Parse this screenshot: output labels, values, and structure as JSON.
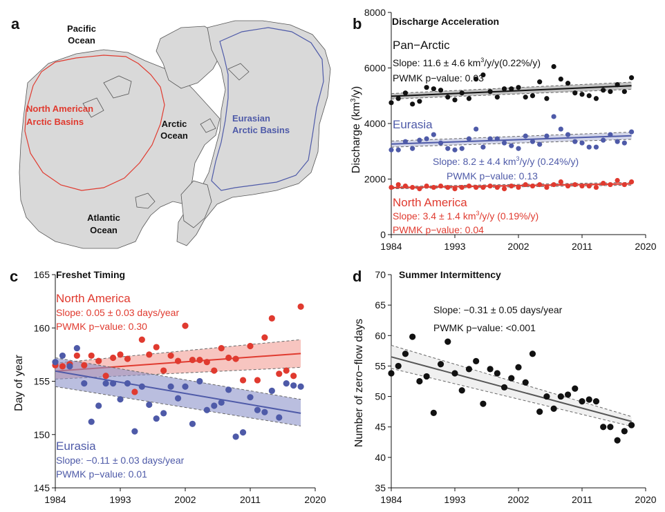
{
  "panels": {
    "a": {
      "letter": "a",
      "labels": {
        "pacific": [
          "Pacific",
          "Ocean"
        ],
        "north_american": [
          "North American",
          "Arctic Basins"
        ],
        "arctic": [
          "Arctic",
          "Ocean"
        ],
        "eurasian": [
          "Eurasian",
          "Arctic Basins"
        ],
        "atlantic": [
          "Atlantic",
          "Ocean"
        ]
      },
      "colors": {
        "north_american": "#e03a2f",
        "eurasian": "#4e5aa8",
        "land": "#d9d9d9"
      }
    },
    "b": {
      "letter": "b",
      "title": "Discharge Acceleration"
    },
    "c": {
      "letter": "c",
      "title": "Freshet Timing"
    },
    "d": {
      "letter": "d",
      "title": "Summer Intermittency"
    }
  },
  "chart_data": [
    {
      "id": "b",
      "type": "scatter",
      "title": "Discharge Acceleration",
      "ylabel_main": "Discharge (km",
      "ylabel_sup": "3",
      "ylabel_tail": "/y)",
      "xlim": [
        1984,
        2020
      ],
      "ylim": [
        0,
        8000
      ],
      "xticks": [
        "1984",
        "1993",
        "2002",
        "2011",
        "2020"
      ],
      "yticks": [
        "0",
        "2000",
        "4000",
        "6000",
        "8000"
      ],
      "series": [
        {
          "name": "Pan−Arctic",
          "color": "#111111",
          "x": [
            1984,
            1985,
            1986,
            1987,
            1988,
            1989,
            1990,
            1991,
            1992,
            1993,
            1994,
            1995,
            1996,
            1997,
            1998,
            1999,
            2000,
            2001,
            2002,
            2003,
            2004,
            2005,
            2006,
            2007,
            2008,
            2009,
            2010,
            2011,
            2012,
            2013,
            2014,
            2015,
            2016,
            2017,
            2018
          ],
          "y": [
            4750,
            4900,
            5100,
            4700,
            4800,
            5300,
            5250,
            5200,
            4950,
            4850,
            5100,
            4900,
            5600,
            5750,
            5150,
            4950,
            5250,
            5250,
            5300,
            4950,
            5000,
            5500,
            4900,
            6050,
            5600,
            5450,
            5100,
            5050,
            5000,
            4900,
            5200,
            5150,
            5400,
            5150,
            5650
          ],
          "trend": [
            4980,
            5360
          ],
          "band": [
            [
              4880,
              5080
            ],
            [
              5230,
              5490
            ]
          ],
          "text": {
            "slope_prefix": "Slope: 11.6 ± 4.6 km",
            "slope_sup": "3",
            "slope_suffix": "/y/y(0.22%/y)",
            "pvalue": "PWMK p−value: 0.03"
          }
        },
        {
          "name": "Eurasia",
          "color": "#4e5aa8",
          "x": [
            1984,
            1985,
            1986,
            1987,
            1988,
            1989,
            1990,
            1991,
            1992,
            1993,
            1994,
            1995,
            1996,
            1997,
            1998,
            1999,
            2000,
            2001,
            2002,
            2003,
            2004,
            2005,
            2006,
            2007,
            2008,
            2009,
            2010,
            2011,
            2012,
            2013,
            2014,
            2015,
            2016,
            2017,
            2018
          ],
          "y": [
            3050,
            3050,
            3350,
            3100,
            3400,
            3450,
            3600,
            3300,
            3100,
            3050,
            3100,
            3450,
            3800,
            3150,
            3450,
            3450,
            3300,
            3200,
            3100,
            3550,
            3350,
            3250,
            3550,
            4250,
            3800,
            3600,
            3350,
            3300,
            3150,
            3150,
            3400,
            3600,
            3350,
            3300,
            3700
          ],
          "trend": [
            3260,
            3560
          ],
          "band": [
            [
              3150,
              3370
            ],
            [
              3430,
              3690
            ]
          ],
          "text": {
            "slope_prefix": "Slope: 8.2 ± 4.4 km",
            "slope_sup": "3",
            "slope_suffix": "/y/y (0.24%/y)",
            "pvalue": "PWMK p−value: 0.13"
          }
        },
        {
          "name": "North America",
          "color": "#e03a2f",
          "x": [
            1984,
            1985,
            1986,
            1987,
            1988,
            1989,
            1990,
            1991,
            1992,
            1993,
            1994,
            1995,
            1996,
            1997,
            1998,
            1999,
            2000,
            2001,
            2002,
            2003,
            2004,
            2005,
            2006,
            2007,
            2008,
            2009,
            2010,
            2011,
            2012,
            2013,
            2014,
            2015,
            2016,
            2017,
            2018
          ],
          "y": [
            1700,
            1800,
            1750,
            1700,
            1650,
            1750,
            1700,
            1750,
            1700,
            1650,
            1700,
            1750,
            1700,
            1700,
            1750,
            1700,
            1650,
            1750,
            1700,
            1800,
            1750,
            1800,
            1700,
            1800,
            1900,
            1750,
            1800,
            1750,
            1750,
            1700,
            1850,
            1800,
            1950,
            1800,
            1900
          ],
          "trend": [
            1690,
            1830
          ],
          "band": [
            [
              1650,
              1730
            ],
            [
              1780,
              1880
            ]
          ],
          "text": {
            "slope_prefix": "Slope: 3.4 ± 1.4 km",
            "slope_sup": "3",
            "slope_suffix": "/y/y  (0.19%/y)",
            "pvalue": "PWMK p−value: 0.04"
          }
        }
      ]
    },
    {
      "id": "c",
      "type": "scatter",
      "title": "Freshet Timing",
      "ylabel": "Day of year",
      "xlim": [
        1984,
        2020
      ],
      "ylim": [
        145,
        165
      ],
      "xticks": [
        "1984",
        "1993",
        "2002",
        "2011",
        "2020"
      ],
      "yticks": [
        "145",
        "150",
        "155",
        "160",
        "165"
      ],
      "series": [
        {
          "name": "North America",
          "color": "#e03a2f",
          "band_color": "#f29f96",
          "x": [
            1984,
            1985,
            1986,
            1987,
            1988,
            1989,
            1990,
            1991,
            1992,
            1993,
            1994,
            1995,
            1996,
            1997,
            1998,
            1999,
            2000,
            2001,
            2002,
            2003,
            2004,
            2005,
            2006,
            2007,
            2008,
            2009,
            2010,
            2011,
            2012,
            2013,
            2014,
            2015,
            2016,
            2017,
            2018
          ],
          "y": [
            156.5,
            156.4,
            156.6,
            157.4,
            156.5,
            157.4,
            156.9,
            155.5,
            157.2,
            157.5,
            157.1,
            154.0,
            158.9,
            157.5,
            158.2,
            156.0,
            157.4,
            156.9,
            160.2,
            157.0,
            157.0,
            156.8,
            156.0,
            158.1,
            157.2,
            157.1,
            155.1,
            158.3,
            155.1,
            159.1,
            160.9,
            155.7,
            156.0,
            155.5,
            162.0
          ],
          "trend": [
            155.95,
            157.6
          ],
          "band": [
            [
              155.2,
              156.7
            ],
            [
              156.3,
              158.9
            ]
          ],
          "text": {
            "slope": "Slope: 0.05 ± 0.03 days/year",
            "pvalue": "PWMK p−value: 0.30"
          }
        },
        {
          "name": "Eurasia",
          "color": "#4e5aa8",
          "band_color": "#8c93c9",
          "x": [
            1984,
            1985,
            1986,
            1987,
            1988,
            1989,
            1990,
            1991,
            1992,
            1993,
            1994,
            1995,
            1996,
            1997,
            1998,
            1999,
            2000,
            2001,
            2002,
            2003,
            2004,
            2005,
            2006,
            2007,
            2008,
            2009,
            2010,
            2011,
            2012,
            2013,
            2014,
            2015,
            2016,
            2017,
            2018
          ],
          "y": [
            156.8,
            157.4,
            156.4,
            158.1,
            154.8,
            151.2,
            152.7,
            154.8,
            154.8,
            153.3,
            154.8,
            150.3,
            154.5,
            152.8,
            151.5,
            152.0,
            154.5,
            153.4,
            154.5,
            151.0,
            155.0,
            152.3,
            152.7,
            153.0,
            154.2,
            149.8,
            150.2,
            153.5,
            152.3,
            152.1,
            154.1,
            151.6,
            154.8,
            154.6,
            154.5
          ],
          "trend": [
            155.95,
            152.0
          ],
          "band": [
            [
              154.5,
              157.2
            ],
            [
              150.8,
              153.3
            ]
          ],
          "text": {
            "slope": "Slope: −0.11 ± 0.03 days/year",
            "pvalue": "PWMK p−value: 0.01"
          }
        }
      ]
    },
    {
      "id": "d",
      "type": "scatter",
      "title": "Summer Intermittency",
      "ylabel": "Number of zero−flow days",
      "xlim": [
        1984,
        2020
      ],
      "ylim": [
        35,
        70
      ],
      "xticks": [
        "1984",
        "1993",
        "2002",
        "2011",
        "2020"
      ],
      "yticks": [
        "35",
        "40",
        "45",
        "50",
        "55",
        "60",
        "65",
        "70"
      ],
      "series": [
        {
          "name": "",
          "color": "#111111",
          "band_color": "#e6e6e6",
          "x": [
            1984,
            1985,
            1986,
            1987,
            1988,
            1989,
            1990,
            1991,
            1992,
            1993,
            1994,
            1995,
            1996,
            1997,
            1998,
            1999,
            2000,
            2001,
            2002,
            2003,
            2004,
            2005,
            2006,
            2007,
            2008,
            2009,
            2010,
            2011,
            2012,
            2013,
            2014,
            2015,
            2016,
            2017,
            2018
          ],
          "y": [
            53.8,
            55.0,
            57.0,
            59.8,
            52.5,
            53.3,
            47.3,
            55.3,
            59.0,
            53.8,
            51.0,
            54.5,
            55.8,
            48.8,
            54.5,
            53.8,
            51.5,
            53.0,
            54.8,
            52.3,
            57.0,
            47.5,
            50.0,
            48.0,
            50.0,
            50.3,
            51.3,
            49.2,
            49.5,
            49.2,
            45.0,
            45.0,
            42.8,
            44.3,
            45.3
          ],
          "trend": [
            56.5,
            45.9
          ],
          "band": [
            [
              54.6,
              58.4
            ],
            [
              45.1,
              46.7
            ]
          ],
          "text": {
            "slope": "Slope: −0.31 ± 0.05 days/year",
            "pvalue": "PWMK p−value: <0.001"
          }
        }
      ]
    }
  ]
}
